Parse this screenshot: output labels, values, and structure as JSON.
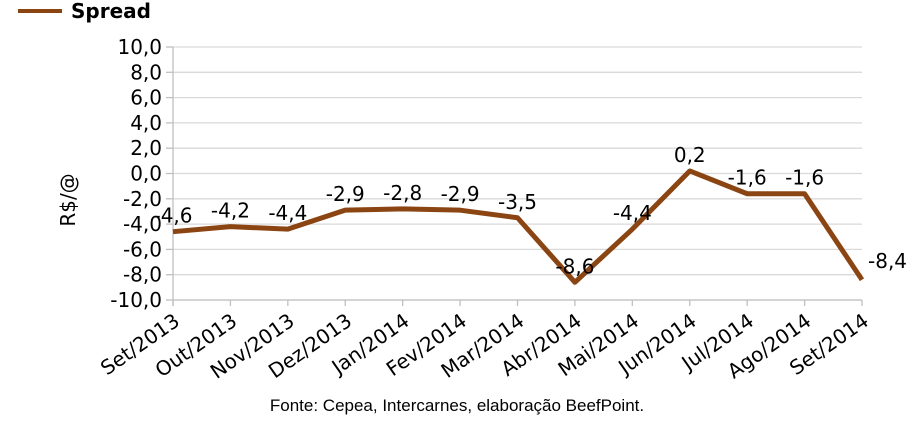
{
  "legend": {
    "label": "Spread"
  },
  "footer": {
    "text": "Fonte: Cepea, Intercarnes, elaboração BeefPoint."
  },
  "chart_data": {
    "type": "line",
    "title": "",
    "xlabel": "",
    "ylabel": "R$/@",
    "categories": [
      "Set/2013",
      "Out/2013",
      "Nov/2013",
      "Dez/2013",
      "Jan/2014",
      "Fev/2014",
      "Mar/2014",
      "Abr/2014",
      "Mai/2014",
      "Jun/2014",
      "Jul/2014",
      "Ago/2014",
      "Set/2014"
    ],
    "series": [
      {
        "name": "Spread",
        "color": "#8B4513",
        "values": [
          -4.6,
          -4.2,
          -4.4,
          -2.9,
          -2.8,
          -2.9,
          -3.5,
          -8.6,
          -4.4,
          0.2,
          -1.6,
          -1.6,
          -8.4
        ]
      }
    ],
    "data_labels": [
      "-4,6",
      "-4,2",
      "-4,4",
      "-2,9",
      "-2,8",
      "-2,9",
      "-3,5",
      "-8,6",
      "-4,4",
      "0,2",
      "-1,6",
      "-1,6",
      "-8,4"
    ],
    "ylim": [
      -10,
      10
    ],
    "ytick_step": 2,
    "ytick_labels": [
      "10,0",
      "8,0",
      "6,0",
      "4,0",
      "2,0",
      "0,0",
      "-2,0",
      "-4,0",
      "-6,0",
      "-8,0",
      "-10,0"
    ],
    "grid": true,
    "legend_position": "top-left",
    "colors": {
      "line": "#8B4513",
      "grid": "#D9D9D9",
      "axis": "#C0C0C0",
      "text": "#000000"
    }
  }
}
